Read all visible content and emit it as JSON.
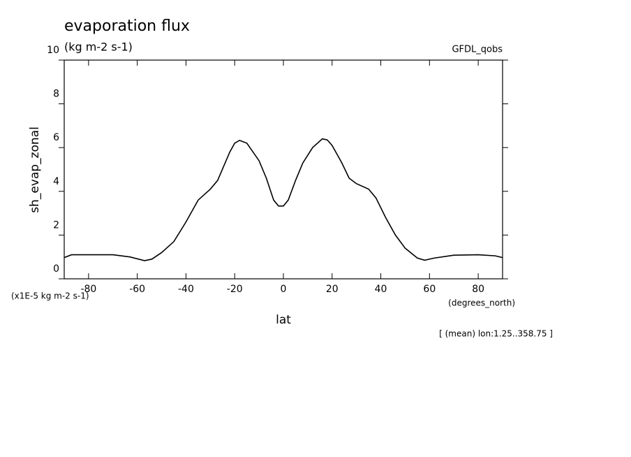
{
  "chart_data": {
    "type": "line",
    "title": "evaporation flux",
    "subtitle": "(kg m-2 s-1)",
    "dataset": "GFDL_qobs",
    "y_label": "sh_evap_zonal",
    "y_units": "(x1E-5 kg m-2 s-1)",
    "x_label": "lat",
    "x_units": "(degrees_north)",
    "annotation": "[ (mean) lon:1.25..358.75 ]",
    "x": [
      -90,
      -87,
      -80,
      -70,
      -63,
      -57,
      -54,
      -50,
      -45,
      -40,
      -35,
      -30,
      -27,
      -22,
      -20,
      -18,
      -15,
      -10,
      -7,
      -4,
      -2,
      0,
      2,
      5,
      8,
      12,
      16,
      18,
      20,
      24,
      27,
      30,
      35,
      38,
      42,
      46,
      50,
      55,
      58,
      62,
      70,
      80,
      87,
      90
    ],
    "series": [
      {
        "color": "#000000",
        "values": [
          0.97,
          1.1,
          1.1,
          1.1,
          1.0,
          0.83,
          0.9,
          1.2,
          1.7,
          2.6,
          3.6,
          4.1,
          4.5,
          5.8,
          6.2,
          6.33,
          6.2,
          5.4,
          4.6,
          3.6,
          3.33,
          3.33,
          3.6,
          4.5,
          5.3,
          6.0,
          6.4,
          6.35,
          6.1,
          5.3,
          4.6,
          4.35,
          4.1,
          3.7,
          2.8,
          2.0,
          1.4,
          0.95,
          0.85,
          0.95,
          1.08,
          1.1,
          1.05,
          0.97
        ]
      }
    ],
    "xlim": [
      -90,
      90
    ],
    "xticks": [
      -80,
      -60,
      -40,
      -20,
      0,
      20,
      40,
      60,
      80
    ],
    "ylim": [
      0,
      10
    ],
    "yticks": [
      0,
      2,
      4,
      6,
      8,
      10
    ]
  }
}
